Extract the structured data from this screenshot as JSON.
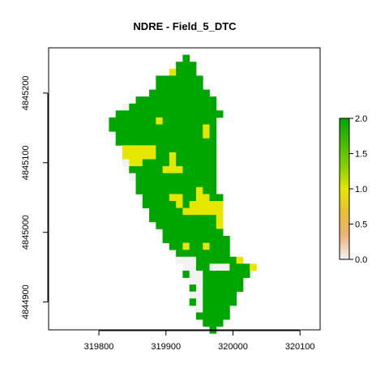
{
  "chart_data": {
    "type": "heatmap",
    "title": "NDRE - Field_5_DTC",
    "xlabel": "",
    "ylabel": "",
    "xlim": [
      319725,
      320130
    ],
    "ylim": [
      4844860,
      4845265
    ],
    "x_ticks": [
      {
        "value": 319800,
        "label": "319800"
      },
      {
        "value": 319900,
        "label": "319900"
      },
      {
        "value": 320000,
        "label": "320000"
      },
      {
        "value": 320100,
        "label": "320100"
      }
    ],
    "y_ticks": [
      {
        "value": 4844900,
        "label": "4844900"
      },
      {
        "value": 4845000,
        "label": "4845000"
      },
      {
        "value": 4845100,
        "label": "4845100"
      },
      {
        "value": 4845200,
        "label": "4845200"
      }
    ],
    "legend": {
      "placement": "right",
      "range": [
        0.0,
        2.0
      ],
      "ticks": [
        {
          "value": 0.0,
          "label": "0.0"
        },
        {
          "value": 0.5,
          "label": "0.5"
        },
        {
          "value": 1.0,
          "label": "1.0"
        },
        {
          "value": 1.5,
          "label": "1.5"
        },
        {
          "value": 2.0,
          "label": "2.0"
        }
      ],
      "color_stops": [
        {
          "value": 0.0,
          "color": "#f2f2f2"
        },
        {
          "value": 0.35,
          "color": "#ecb176"
        },
        {
          "value": 0.7,
          "color": "#e6c32d"
        },
        {
          "value": 1.0,
          "color": "#e6e600"
        },
        {
          "value": 1.3,
          "color": "#8bd000"
        },
        {
          "value": 2.0,
          "color": "#00a600"
        }
      ]
    },
    "grid": {
      "cell_size": 10,
      "x_start": 319815,
      "y_start": 4845255,
      "legend_codes": {
        "G": 2.0,
        "Y": 1.0,
        "W": 0.0
      },
      "rows": [
        "...........G..........",
        "..........GGG.........",
        ".........YGGG.........",
        ".......GGGGGGG........",
        ".......GGGGGGG........",
        "......GGGGGGGGG.......",
        "....GGGGGGGGGGGG......",
        "..WGGGGGGGGGGGGG......",
        ".GGGGGGGGGGGGGGGG.....",
        "GGGGGGGYGGGGGGGG......",
        "GGGGGGGGGGGGGGYG......",
        ".GGGGGGGGGGGGGYG......",
        ".GGGGGGGGGGGGGGG......",
        "..YYYYYGGGGGGGGG......",
        "..YYYYYGGYGGGGGG......",
        "..WYYGGGGYGGGGGG......",
        "...GGGGGYYYGGGGG......",
        "...WGGGGGGGGGGGG......",
        "....GGGGGGGGGGGG......",
        "....GGGGGGGGGYGG......",
        ".....GGGGYYGGYYGG.....",
        ".....GGGGGYGYYYYY.....",
        "......GGGGGYYYYYY.....",
        "......GGGGGGGGGGY.....",
        ".......GGGGGGGGGY.....",
        "........GGGGGGGGG.....",
        "........GGGGGGGGGG....",
        ".........GGYGGYGGG....",
        "..........GGGGGGGG....",
        "..........WWWGGGGGGY..",
        "...........WWGGWWWGGGY",
        "...........GWWGGGGGGG.",
        "............WWGGGGGG..",
        "............GWGGGGGG..",
        "............WWGGGGG...",
        "............GWGGGGG...",
        ".............WGGGG....",
        ".............GGGGG....",
        "..............GGG.....",
        "...............G......"
      ]
    }
  }
}
